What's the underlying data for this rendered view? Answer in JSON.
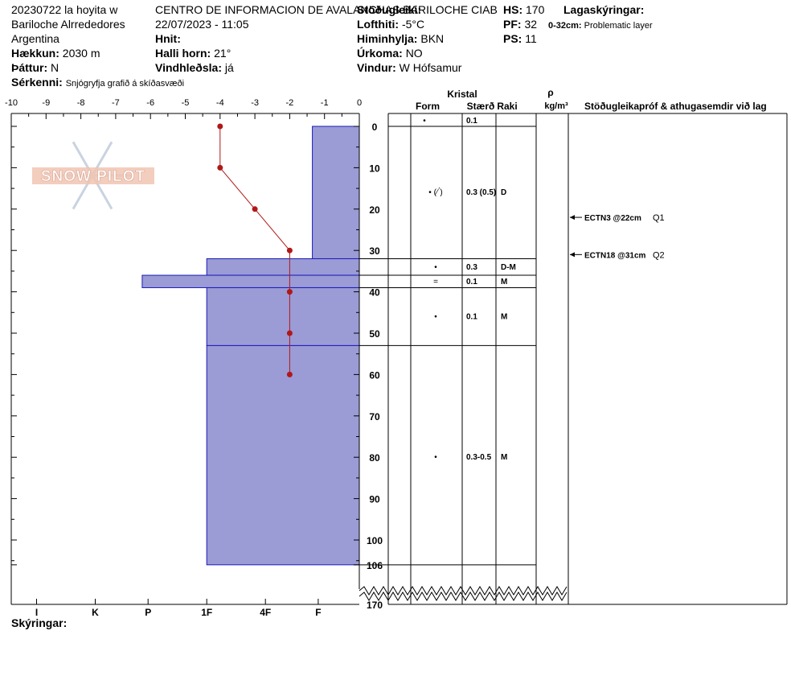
{
  "header": {
    "obs_name": "20230722 la hoyita w",
    "location": "Bariloche Alrrededores",
    "country": "Argentina",
    "elevation_label": "Hækkun:",
    "elevation_value": "2030 m",
    "aspect_label": "Þáttur:",
    "aspect_value": "N",
    "specifics_label": "Sérkenni:",
    "specifics_value": "Snjógryfja grafið á skíðasvæði",
    "org": "CENTRO DE INFORMACION DE AVALANCHAS BARILOCHE CIAB",
    "datetime": "22/07/2023 - 11:05",
    "coords_label": "Hnit:",
    "slope_label": "Halli horn:",
    "slope_value": "21°",
    "wind_loading_label": "Vindhleðsla:",
    "wind_loading_value": "já",
    "stability_label": "Stöðugleiki:",
    "air_temp_label": "Lofthiti:",
    "air_temp_value": "-5°C",
    "sky_label": "Himinhylja:",
    "sky_value": "BKN",
    "precip_label": "Úrkoma:",
    "precip_value": "NO",
    "wind_label": "Vindur:",
    "wind_value": "W Hófsamur",
    "hs_label": "HS:",
    "hs_value": "170",
    "pf_label": "PF:",
    "pf_value": "32",
    "ps_label": "PS:",
    "ps_value": "11",
    "layer_notes_label": "Lagaskýringar:",
    "layer_note_range": "0-32cm:",
    "layer_note_text": "Problematic layer",
    "legend_label": "Skýringar:"
  },
  "watermark": "SNOW PILOT",
  "colors": {
    "hardness_fill": "#9b9bd6",
    "hardness_stroke": "#1a1ab8",
    "temp_line": "#b01818",
    "grid": "#000000"
  },
  "chart_data": {
    "type": "snow_profile",
    "temp_axis": {
      "ticks": [
        "-10",
        "-9",
        "-8",
        "-7",
        "-6",
        "-5",
        "-4",
        "-3",
        "-2",
        "-1",
        "0"
      ],
      "range": [
        -10,
        0
      ]
    },
    "depth_axis": {
      "ticks": [
        "0",
        "10",
        "20",
        "30",
        "40",
        "50",
        "60",
        "70",
        "80",
        "90",
        "100",
        "106"
      ],
      "max_label": "170",
      "range": [
        0,
        106
      ]
    },
    "hardness_axis": {
      "ticks": [
        "I",
        "K",
        "P",
        "1F",
        "4F",
        "F"
      ]
    },
    "temperature_profile": [
      {
        "depth": 0,
        "temp": -4
      },
      {
        "depth": 10,
        "temp": -4
      },
      {
        "depth": 20,
        "temp": -3
      },
      {
        "depth": 30,
        "temp": -2
      },
      {
        "depth": 40,
        "temp": -2
      },
      {
        "depth": 50,
        "temp": -2
      },
      {
        "depth": 60,
        "temp": -2
      }
    ],
    "hardness_layers": [
      {
        "top": 0,
        "bottom": 32,
        "hardness_index": 0.8
      },
      {
        "top": 32,
        "bottom": 36,
        "hardness_index": 2.6
      },
      {
        "top": 36,
        "bottom": 39,
        "hardness_index": 3.7
      },
      {
        "top": 39,
        "bottom": 53,
        "hardness_index": 2.6
      },
      {
        "top": 53,
        "bottom": 106,
        "hardness_index": 2.6
      }
    ],
    "table_headers": {
      "crystal": "Kristal",
      "form": "Form",
      "size": "Stærð",
      "moisture": "Raki",
      "rho": "ρ",
      "rho_unit": "kg/m³",
      "tests": "Stöðugleikapróf & athugasemdir við lag"
    },
    "layers": [
      {
        "top": 0,
        "bottom": 32,
        "label_depth": 16,
        "form": "• (⁄ ́)",
        "size": "0.3 (0.5)",
        "moisture": "D"
      },
      {
        "top": 32,
        "bottom": 36,
        "label_depth": 34,
        "form": "•",
        "size": "0.3",
        "moisture": "D-M"
      },
      {
        "top": 36,
        "bottom": 39,
        "label_depth": 37.5,
        "form": "=",
        "size": "0.1",
        "moisture": "M"
      },
      {
        "top": 39,
        "bottom": 53,
        "label_depth": 46,
        "form": "•",
        "size": "0.1",
        "moisture": "M"
      },
      {
        "top": 53,
        "bottom": 106,
        "label_depth": 80,
        "form": "•",
        "size": "0.3-0.5",
        "moisture": "M"
      }
    ],
    "surface_row": {
      "form": "•",
      "size": "0.1"
    },
    "tests": [
      {
        "depth": 22,
        "label": "ECTN3 @22cm",
        "quality": "Q1"
      },
      {
        "depth": 31,
        "label": "ECTN18 @31cm",
        "quality": "Q2"
      }
    ]
  }
}
